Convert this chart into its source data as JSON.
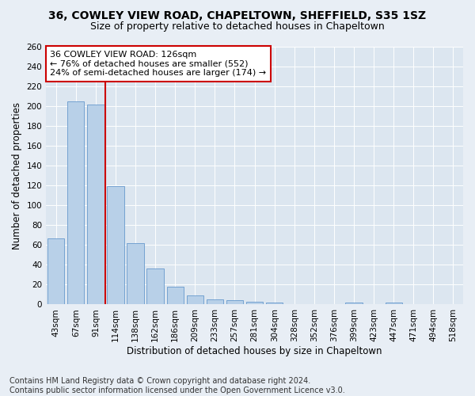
{
  "title1": "36, COWLEY VIEW ROAD, CHAPELTOWN, SHEFFIELD, S35 1SZ",
  "title2": "Size of property relative to detached houses in Chapeltown",
  "xlabel": "Distribution of detached houses by size in Chapeltown",
  "ylabel": "Number of detached properties",
  "categories": [
    "43sqm",
    "67sqm",
    "91sqm",
    "114sqm",
    "138sqm",
    "162sqm",
    "186sqm",
    "209sqm",
    "233sqm",
    "257sqm",
    "281sqm",
    "304sqm",
    "328sqm",
    "352sqm",
    "376sqm",
    "399sqm",
    "423sqm",
    "447sqm",
    "471sqm",
    "494sqm",
    "518sqm"
  ],
  "values": [
    67,
    205,
    202,
    119,
    62,
    36,
    18,
    9,
    5,
    4,
    3,
    2,
    0,
    0,
    0,
    2,
    0,
    2,
    0,
    0,
    0
  ],
  "bar_color": "#b8d0e8",
  "bar_edge_color": "#6699cc",
  "vline_color": "#cc0000",
  "annotation_text": "36 COWLEY VIEW ROAD: 126sqm\n← 76% of detached houses are smaller (552)\n24% of semi-detached houses are larger (174) →",
  "annotation_box_color": "#ffffff",
  "annotation_box_edge": "#cc0000",
  "ylim": [
    0,
    260
  ],
  "yticks": [
    0,
    20,
    40,
    60,
    80,
    100,
    120,
    140,
    160,
    180,
    200,
    220,
    240,
    260
  ],
  "footnote": "Contains HM Land Registry data © Crown copyright and database right 2024.\nContains public sector information licensed under the Open Government Licence v3.0.",
  "bg_color": "#e8eef5",
  "plot_bg": "#dce6f0",
  "grid_color": "#ffffff",
  "title1_fontsize": 10,
  "title2_fontsize": 9,
  "axis_label_fontsize": 8.5,
  "tick_fontsize": 7.5,
  "annotation_fontsize": 8,
  "footnote_fontsize": 7
}
